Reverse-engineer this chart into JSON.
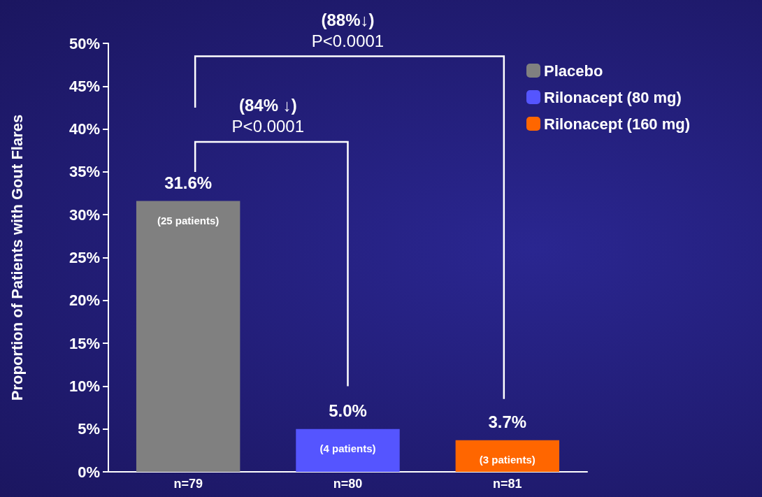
{
  "chart_data": {
    "type": "bar",
    "ylabel": "Proportion of Patients with Gout Flares",
    "categories": [
      "n=79",
      "n=80",
      "n=81"
    ],
    "series": [
      {
        "name": "Placebo",
        "color": "#808080",
        "values": [
          31.6,
          null,
          null
        ],
        "value_labels": [
          "31.6%",
          null,
          null
        ]
      },
      {
        "name": "Rilonacept (80 mg)",
        "color": "#5555ff",
        "values": [
          null,
          5.0,
          null
        ],
        "value_labels": [
          null,
          "5.0%",
          null
        ]
      },
      {
        "name": "Rilonacept (160 mg)",
        "color": "#ff6600",
        "values": [
          null,
          null,
          3.7
        ],
        "value_labels": [
          null,
          null,
          "3.7%"
        ]
      }
    ],
    "ylim": [
      0,
      50
    ],
    "yticks": [
      {
        "value": 0,
        "label": "0%"
      },
      {
        "value": 5,
        "label": "5%"
      },
      {
        "value": 10,
        "label": "10%"
      },
      {
        "value": 15,
        "label": "15%"
      },
      {
        "value": 20,
        "label": "20%"
      },
      {
        "value": 25,
        "label": "25%"
      },
      {
        "value": 30,
        "label": "30%"
      },
      {
        "value": 35,
        "label": "35%"
      },
      {
        "value": 40,
        "label": "40%"
      },
      {
        "value": 45,
        "label": "45%"
      },
      {
        "value": 50,
        "label": "50%"
      }
    ],
    "annotations": [
      {
        "text": "(25 patients)",
        "x": "n=79",
        "y": 31.6
      },
      {
        "text": "(4 patients)",
        "x": "n=80",
        "y": 5.0
      },
      {
        "text": "(3 patients)",
        "x": "n=81",
        "y": 3.7
      },
      "(84% ↓)",
      "P<0.0001",
      "(88%↓)",
      "P<0.0001"
    ],
    "grid": false,
    "legend": "top right"
  }
}
